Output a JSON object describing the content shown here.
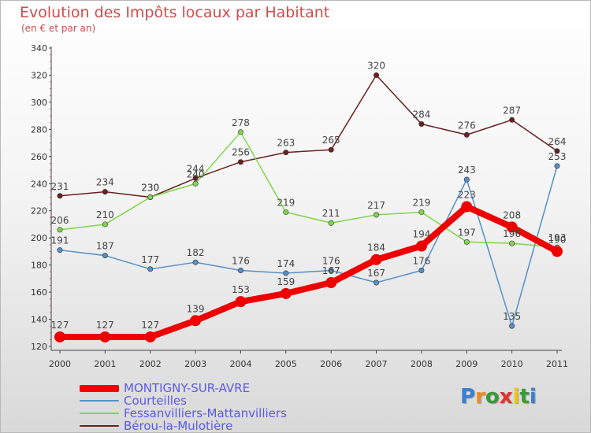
{
  "title": "Evolution des Impôts locaux par Habitant",
  "subtitle": "(en € et par an)",
  "logo": {
    "text": "Proxiti",
    "letter_colors": [
      "#3a7fd5",
      "#f08a1c",
      "#3a9a3a",
      "#e0352b",
      "#f0c21c",
      "#3a9a3a",
      "#3a7fd5"
    ]
  },
  "chart_data": {
    "type": "line",
    "categories": [
      "2000",
      "2001",
      "2002",
      "2003",
      "2004",
      "2005",
      "2006",
      "2007",
      "2008",
      "2009",
      "2010",
      "2011"
    ],
    "ylim": [
      120,
      340
    ],
    "yticks": [
      120,
      140,
      160,
      180,
      200,
      220,
      240,
      260,
      280,
      300,
      320,
      340
    ],
    "grid": false,
    "legend_position": "bottom-left",
    "series": [
      {
        "name": "Bérou-la-Mulotière",
        "color": "#6b1f1f",
        "width": 1.5,
        "values": [
          231,
          234,
          230,
          244,
          256,
          263,
          265,
          320,
          284,
          276,
          287,
          264
        ],
        "labels": [
          "231",
          "234",
          "230",
          "244",
          "256",
          "263",
          "265",
          "320",
          "284",
          "276",
          "287",
          "264"
        ]
      },
      {
        "name": "Fessanvilliers-Mattanvilliers",
        "color": "#7fd64a",
        "width": 1.5,
        "values": [
          206,
          210,
          230,
          240,
          278,
          219,
          211,
          217,
          219,
          197,
          196,
          193
        ],
        "labels": [
          "206",
          "210",
          "230",
          "240",
          "278",
          "219",
          "211",
          "217",
          "219",
          "197",
          "196",
          "193"
        ]
      },
      {
        "name": "Courteilles",
        "color": "#5590c8",
        "width": 1.5,
        "values": [
          191,
          187,
          177,
          182,
          176,
          174,
          176,
          167,
          176,
          243,
          135,
          253
        ],
        "labels": [
          "191",
          "187",
          "177",
          "182",
          "176",
          "174",
          "176",
          "167",
          "176",
          "243",
          "135",
          "253"
        ]
      },
      {
        "name": "MONTIGNY-SUR-AVRE",
        "color": "#ee0000",
        "width": 8,
        "values": [
          127,
          127,
          127,
          139,
          153,
          159,
          167,
          184,
          194,
          223,
          208,
          190
        ],
        "labels": [
          "127",
          "127",
          "127",
          "139",
          "153",
          "159",
          "167",
          "184",
          "194",
          "223",
          "208",
          "190"
        ]
      }
    ],
    "legend_order": [
      "MONTIGNY-SUR-AVRE",
      "Courteilles",
      "Fessanvilliers-Mattanvilliers",
      "Bérou-la-Mulotière"
    ]
  }
}
